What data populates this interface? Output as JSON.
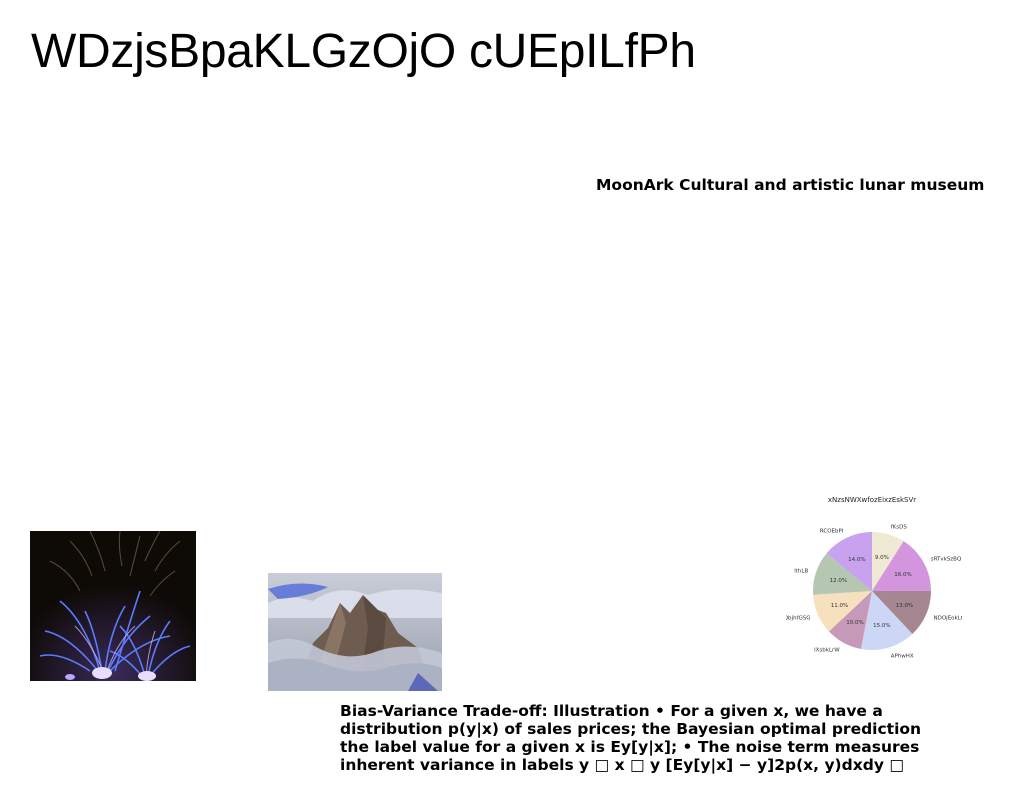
{
  "header": {
    "title": "WDzjsBpaKLGzOjO cUEpILfPh"
  },
  "subtitle": "MoonArk Cultural and artistic lunar museum",
  "caption": "Bias-Variance Trade-off: Illustration • For a given x, we have a distribution p(y|x) of sales prices; the Bayesian optimal prediction the label value for a given x is Ey[y|x]; • The noise term measures inherent variance in labels y □ x □ y [Ey[y|x] − y]2p(x, y)dxdy □",
  "chart_data": {
    "type": "pie",
    "title": "xNzsNWXwfozEixzEskSVr",
    "slices": [
      {
        "label": "fKsDS",
        "value": 9.0,
        "pct_label": "9.0%",
        "color": "#efe8d2"
      },
      {
        "label": "sRTvkSzBQ",
        "value": 16.0,
        "pct_label": "16.0%",
        "color": "#d295de"
      },
      {
        "label": "NDOjEokLG",
        "value": 13.0,
        "pct_label": "13.0%",
        "color": "#a68690"
      },
      {
        "label": "APhwHX",
        "value": 15.0,
        "pct_label": "15.0%",
        "color": "#cbd7f5"
      },
      {
        "label": "lXsbkLrW",
        "value": 10.0,
        "pct_label": "10.0%",
        "color": "#c799b9"
      },
      {
        "label": "QbjhfGSG",
        "value": 11.0,
        "pct_label": "11.0%",
        "color": "#f7e0bd"
      },
      {
        "label": "lthLB",
        "value": 12.0,
        "pct_label": "12.0%",
        "color": "#b6c7b1"
      },
      {
        "label": "RCOEbPI",
        "value": 14.0,
        "pct_label": "14.0%",
        "color": "#c8a2ef"
      }
    ]
  }
}
